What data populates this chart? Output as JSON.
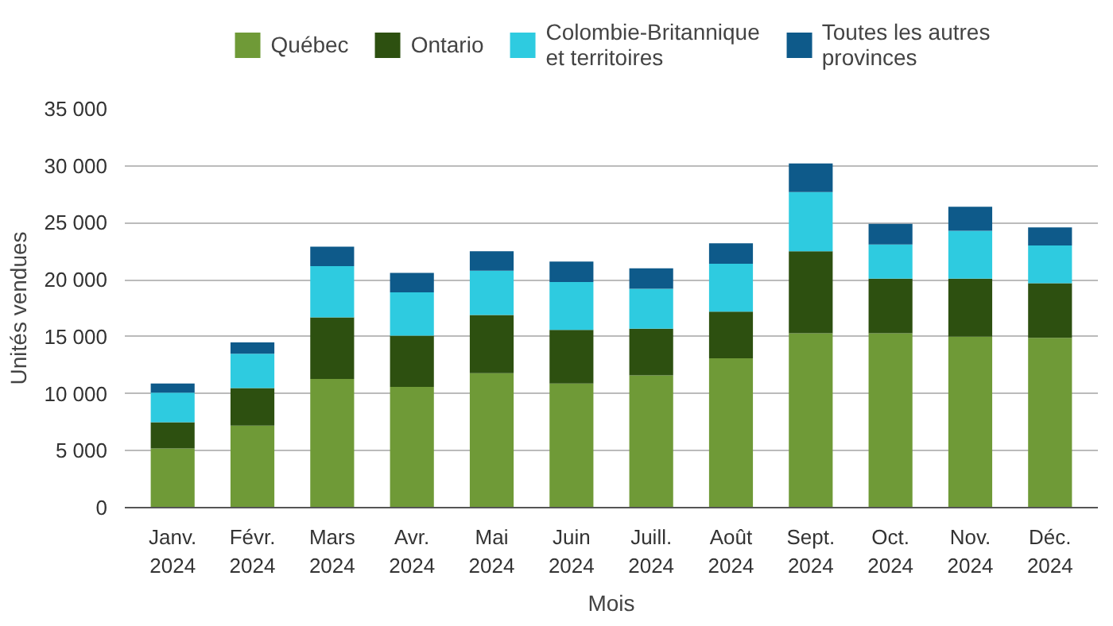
{
  "chart_data": {
    "type": "bar",
    "stacked": true,
    "xlabel": "Mois",
    "ylabel": "Unités vendues",
    "categories": [
      "Janv. 2024",
      "Févr. 2024",
      "Mars 2024",
      "Avr. 2024",
      "Mai 2024",
      "Juin 2024",
      "Juill. 2024",
      "Août 2024",
      "Sept. 2024",
      "Oct. 2024",
      "Nov. 2024",
      "Déc. 2024"
    ],
    "series": [
      {
        "name": "Québec",
        "color": "#6f9a37",
        "values": [
          5200,
          7200,
          11300,
          10600,
          11800,
          10900,
          11600,
          13100,
          15300,
          15300,
          15000,
          14900
        ]
      },
      {
        "name": "Ontario",
        "color": "#2d5010",
        "values": [
          2300,
          3300,
          5400,
          4500,
          5100,
          4700,
          4100,
          4100,
          7200,
          4800,
          5100,
          4800
        ]
      },
      {
        "name": "Colombie-Britannique et territoires",
        "color": "#2ecbe0",
        "values": [
          2600,
          3000,
          4500,
          3800,
          3900,
          4200,
          3500,
          4200,
          5200,
          3000,
          4200,
          3300
        ]
      },
      {
        "name": "Toutes les autres provinces",
        "color": "#0e5a8a",
        "values": [
          800,
          1000,
          1700,
          1700,
          1700,
          1800,
          1800,
          1800,
          2500,
          1800,
          2100,
          1600
        ]
      }
    ],
    "ylim": [
      0,
      35000
    ],
    "yticks": [
      0,
      {
        "value": 5000,
        "label": "5 000"
      },
      {
        "value": 10000,
        "label": "10 000"
      },
      {
        "value": 15000,
        "label": "15 000"
      },
      {
        "value": 20000,
        "label": "20 000"
      },
      {
        "value": 25000,
        "label": "25 000"
      },
      {
        "value": 30000,
        "label": "30 000"
      },
      {
        "value": 35000,
        "label": "35 000"
      }
    ],
    "grid": "y",
    "legend": "top"
  }
}
